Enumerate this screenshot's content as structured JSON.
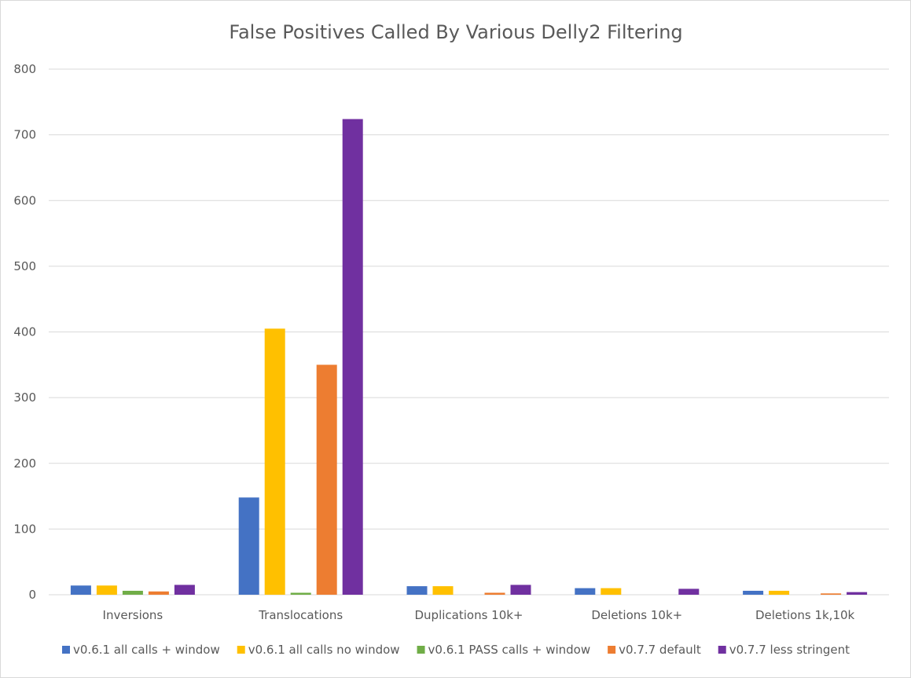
{
  "chart_data": {
    "type": "bar",
    "title": "False Positives Called By Various Delly2 Filtering",
    "xlabel": "",
    "ylabel": "",
    "ylim": [
      0,
      800
    ],
    "yticks": [
      0,
      100,
      200,
      300,
      400,
      500,
      600,
      700,
      800
    ],
    "grid": true,
    "legend_position": "bottom",
    "categories": [
      "Inversions",
      "Translocations",
      "Duplications 10k+",
      "Deletions 10k+",
      "Deletions 1k,10k"
    ],
    "series": [
      {
        "name": "v0.6.1 all calls + window",
        "color": "#4472c4",
        "values": [
          14,
          148,
          13,
          10,
          6
        ]
      },
      {
        "name": "v0.6.1 all calls  no window",
        "color": "#ffc000",
        "values": [
          14,
          405,
          13,
          10,
          6
        ]
      },
      {
        "name": "v0.6.1 PASS calls + window",
        "color": "#70ad47",
        "values": [
          6,
          3,
          0,
          0,
          0
        ]
      },
      {
        "name": "v0.7.7 default",
        "color": "#ed7d31",
        "values": [
          5,
          350,
          3,
          0,
          2
        ]
      },
      {
        "name": "v0.7.7 less stringent",
        "color": "#7030a0",
        "values": [
          15,
          724,
          15,
          9,
          4
        ]
      }
    ]
  }
}
